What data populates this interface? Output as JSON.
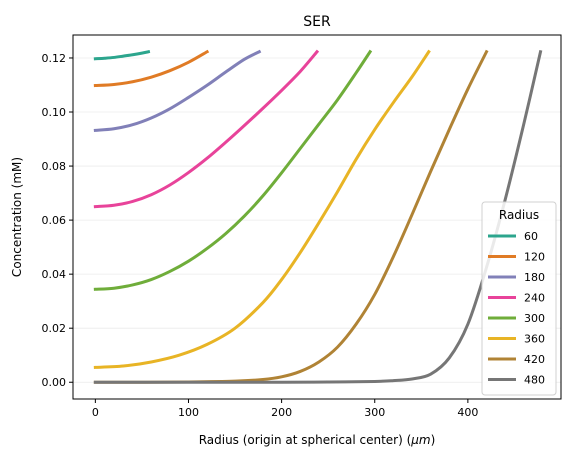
{
  "chart_data": {
    "type": "line",
    "title": "SER",
    "xlabel": "Radius (origin at spherical center) (",
    "xlabel_unit": "μm",
    "xlabel_close": ")",
    "ylabel": "Concentration (mM)",
    "xlim": [
      -24,
      500
    ],
    "ylim": [
      -0.0062,
      0.1285
    ],
    "x_ticks": [
      0,
      100,
      200,
      300,
      400
    ],
    "y_ticks": [
      0.0,
      0.02,
      0.04,
      0.06,
      0.08,
      0.1,
      0.12
    ],
    "y_tick_labels": [
      "0.00",
      "0.02",
      "0.04",
      "0.06",
      "0.08",
      "0.10",
      "0.12"
    ],
    "grid": "horizontal, light",
    "legend": {
      "title": "Radius",
      "placement": "lower-right"
    },
    "series": [
      {
        "name": "60",
        "color": "#2ca58d",
        "x": [
          0,
          10,
          20,
          30,
          40,
          50,
          57
        ],
        "y": [
          0.1197,
          0.1199,
          0.1202,
          0.1207,
          0.1212,
          0.1218,
          0.1223
        ]
      },
      {
        "name": "120",
        "color": "#e07b25",
        "x": [
          0,
          20,
          40,
          60,
          80,
          100,
          120
        ],
        "y": [
          0.1098,
          0.1102,
          0.1112,
          0.1129,
          0.1153,
          0.1184,
          0.1223
        ]
      },
      {
        "name": "180",
        "color": "#8180b8",
        "x": [
          0,
          20,
          40,
          60,
          80,
          100,
          120,
          140,
          160,
          176
        ],
        "y": [
          0.0932,
          0.0938,
          0.0953,
          0.0978,
          0.1012,
          0.1054,
          0.1099,
          0.1148,
          0.1195,
          0.1223
        ]
      },
      {
        "name": "240",
        "color": "#e8439a",
        "x": [
          0,
          20,
          40,
          60,
          80,
          100,
          120,
          140,
          160,
          180,
          200,
          220,
          238
        ],
        "y": [
          0.065,
          0.0655,
          0.0669,
          0.0694,
          0.073,
          0.0776,
          0.0829,
          0.0888,
          0.095,
          0.1014,
          0.108,
          0.115,
          0.1223
        ]
      },
      {
        "name": "300",
        "color": "#6fad3a",
        "x": [
          0,
          20,
          40,
          60,
          80,
          100,
          120,
          140,
          160,
          180,
          200,
          220,
          240,
          260,
          280,
          295
        ],
        "y": [
          0.0344,
          0.0348,
          0.036,
          0.038,
          0.041,
          0.0448,
          0.0495,
          0.055,
          0.0615,
          0.069,
          0.0775,
          0.0865,
          0.0955,
          0.1045,
          0.1145,
          0.1223
        ]
      },
      {
        "name": "360",
        "color": "#e8b425",
        "x": [
          0,
          30,
          60,
          90,
          120,
          150,
          180,
          200,
          220,
          240,
          260,
          280,
          300,
          320,
          340,
          358
        ],
        "y": [
          0.0055,
          0.006,
          0.0075,
          0.01,
          0.014,
          0.02,
          0.0295,
          0.038,
          0.048,
          0.059,
          0.0705,
          0.0825,
          0.0935,
          0.1035,
          0.113,
          0.1223
        ]
      },
      {
        "name": "420",
        "color": "#b08335",
        "x": [
          0,
          50,
          100,
          150,
          180,
          200,
          220,
          240,
          260,
          280,
          300,
          320,
          340,
          360,
          380,
          400,
          420
        ],
        "y": [
          0.0,
          0.0,
          0.0001,
          0.0004,
          0.001,
          0.002,
          0.004,
          0.0075,
          0.013,
          0.0215,
          0.0325,
          0.0465,
          0.062,
          0.078,
          0.0935,
          0.1085,
          0.1223
        ]
      },
      {
        "name": "480",
        "color": "#767676",
        "x": [
          0,
          100,
          200,
          250,
          300,
          320,
          340,
          360,
          380,
          400,
          420,
          440,
          460,
          478
        ],
        "y": [
          0.0,
          0.0,
          0.0,
          0.0001,
          0.0003,
          0.0006,
          0.0012,
          0.003,
          0.009,
          0.0215,
          0.0425,
          0.0675,
          0.0955,
          0.1223
        ]
      }
    ]
  }
}
